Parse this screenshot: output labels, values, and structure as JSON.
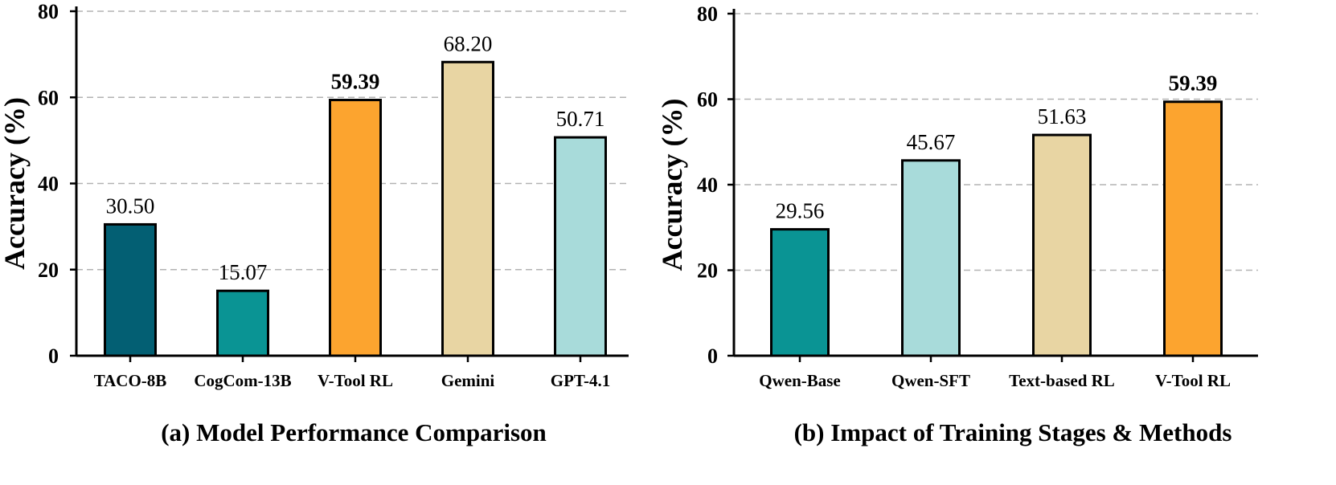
{
  "chart_data": [
    {
      "type": "bar",
      "title": "(a) Model Performance Comparison",
      "xlabel": "",
      "ylabel": "Accuracy (%)",
      "ylim": [
        0,
        80
      ],
      "yticks": [
        0,
        20,
        40,
        60,
        80
      ],
      "grid": "horizontal dashed",
      "categories": [
        "TACO-8B",
        "CogCom-13B",
        "V-Tool RL",
        "Gemini",
        "GPT-4.1"
      ],
      "values": [
        30.5,
        15.07,
        59.39,
        68.2,
        50.71
      ],
      "value_labels": [
        "30.50",
        "15.07",
        "59.39",
        "68.20",
        "50.71"
      ],
      "bold_value_labels": [
        false,
        false,
        true,
        false,
        false
      ],
      "colors": [
        "#035f73",
        "#0a9494",
        "#fca42f",
        "#e8d5a3",
        "#a8dbda"
      ]
    },
    {
      "type": "bar",
      "title": "(b) Impact of Training Stages & Methods",
      "xlabel": "",
      "ylabel": "Accuracy (%)",
      "ylim": [
        0,
        80
      ],
      "yticks": [
        0,
        20,
        40,
        60,
        80
      ],
      "grid": "horizontal dashed",
      "categories": [
        "Qwen-Base",
        "Qwen-SFT",
        "Text-based RL",
        "V-Tool RL"
      ],
      "values": [
        29.56,
        45.67,
        51.63,
        59.39
      ],
      "value_labels": [
        "29.56",
        "45.67",
        "51.63",
        "59.39"
      ],
      "bold_value_labels": [
        false,
        false,
        false,
        true
      ],
      "colors": [
        "#0a9494",
        "#a8dbda",
        "#e8d5a3",
        "#fca42f"
      ]
    }
  ]
}
